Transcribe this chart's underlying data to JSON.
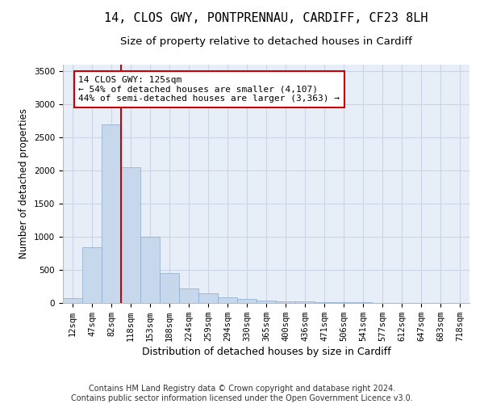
{
  "title1": "14, CLOS GWY, PONTPRENNAU, CARDIFF, CF23 8LH",
  "title2": "Size of property relative to detached houses in Cardiff",
  "xlabel": "Distribution of detached houses by size in Cardiff",
  "ylabel": "Number of detached properties",
  "categories": [
    "12sqm",
    "47sqm",
    "82sqm",
    "118sqm",
    "153sqm",
    "188sqm",
    "224sqm",
    "259sqm",
    "294sqm",
    "330sqm",
    "365sqm",
    "400sqm",
    "436sqm",
    "471sqm",
    "506sqm",
    "541sqm",
    "577sqm",
    "612sqm",
    "647sqm",
    "683sqm",
    "718sqm"
  ],
  "values": [
    75,
    840,
    2700,
    2050,
    1000,
    450,
    220,
    150,
    80,
    55,
    40,
    30,
    20,
    15,
    10,
    8,
    6,
    5,
    4,
    3,
    2
  ],
  "bar_color": "#c8d8ec",
  "bar_edge_color": "#8aaac8",
  "vline_color": "#cc0000",
  "annotation_text": "14 CLOS GWY: 125sqm\n← 54% of detached houses are smaller (4,107)\n44% of semi-detached houses are larger (3,363) →",
  "annotation_box_color": "#ffffff",
  "annotation_box_edge": "#cc0000",
  "ylim": [
    0,
    3600
  ],
  "yticks": [
    0,
    500,
    1000,
    1500,
    2000,
    2500,
    3000,
    3500
  ],
  "grid_color": "#ccd5e5",
  "background_color": "#e8eef8",
  "footer": "Contains HM Land Registry data © Crown copyright and database right 2024.\nContains public sector information licensed under the Open Government Licence v3.0.",
  "title1_fontsize": 11,
  "title2_fontsize": 9.5,
  "xlabel_fontsize": 9,
  "ylabel_fontsize": 8.5,
  "tick_fontsize": 7.5,
  "annotation_fontsize": 8,
  "footer_fontsize": 7
}
